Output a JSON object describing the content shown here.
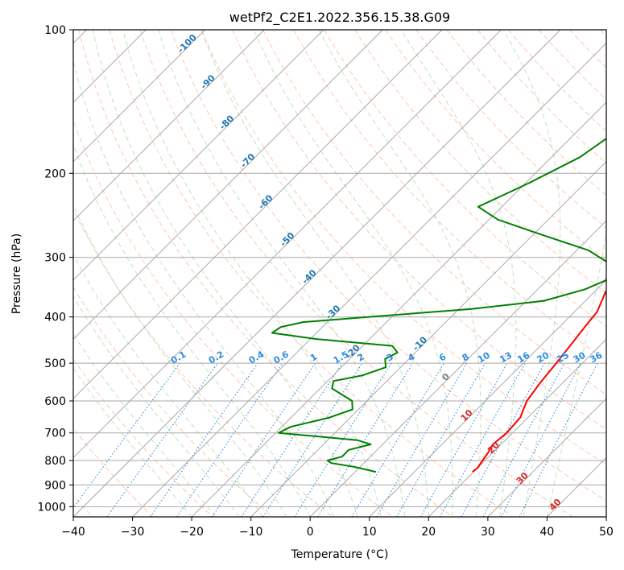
{
  "chart_data": {
    "type": "line",
    "title": "wetPf2_C2E1.2022.356.15.38.G09",
    "xlabel": "Temperature (°C)",
    "ylabel": "Pressure (hPa)",
    "xlim": [
      -40,
      50
    ],
    "ylim": [
      1050,
      100
    ],
    "y_scale": "log",
    "x_ticks": [
      -40,
      -30,
      -20,
      -10,
      0,
      10,
      20,
      30,
      40,
      50
    ],
    "y_ticks": [
      100,
      200,
      300,
      400,
      500,
      600,
      700,
      800,
      900,
      1000
    ],
    "grid": true,
    "skew": "temperature isotherms skewed 45°",
    "series": [
      {
        "color": "#ff0000",
        "variable": "temperature",
        "points": [
          {
            "p": 100,
            "t": 7.0
          },
          {
            "p": 115,
            "t": 3.2
          },
          {
            "p": 130,
            "t": 1.5
          },
          {
            "p": 145,
            "t": 2.0
          },
          {
            "p": 160,
            "t": 3.5
          },
          {
            "p": 175,
            "t": 4.6
          },
          {
            "p": 190,
            "t": 6.0
          },
          {
            "p": 210,
            "t": 8.0
          },
          {
            "p": 230,
            "t": 9.6
          },
          {
            "p": 250,
            "t": 9.6
          },
          {
            "p": 270,
            "t": 8.5
          },
          {
            "p": 290,
            "t": 8.0
          },
          {
            "p": 310,
            "t": 9.0
          },
          {
            "p": 330,
            "t": 10.6
          },
          {
            "p": 360,
            "t": 12.2
          },
          {
            "p": 390,
            "t": 13.8
          },
          {
            "p": 420,
            "t": 14.3
          },
          {
            "p": 460,
            "t": 15.0
          },
          {
            "p": 500,
            "t": 15.6
          },
          {
            "p": 550,
            "t": 16.2
          },
          {
            "p": 600,
            "t": 17.0
          },
          {
            "p": 650,
            "t": 18.7
          },
          {
            "p": 700,
            "t": 19.0
          },
          {
            "p": 740,
            "t": 18.6
          },
          {
            "p": 770,
            "t": 19.2
          },
          {
            "p": 800,
            "t": 19.6
          },
          {
            "p": 830,
            "t": 20.0
          },
          {
            "p": 845,
            "t": 19.8
          }
        ]
      },
      {
        "color": "#008000",
        "variable": "dewpoint",
        "points": [
          {
            "p": 100,
            "t": -5.0
          },
          {
            "p": 115,
            "t": -9.0
          },
          {
            "p": 130,
            "t": -11.5
          },
          {
            "p": 145,
            "t": -12.7
          },
          {
            "p": 165,
            "t": -13.5
          },
          {
            "p": 185,
            "t": -15.2
          },
          {
            "p": 210,
            "t": -19.5
          },
          {
            "p": 235,
            "t": -24.0
          },
          {
            "p": 250,
            "t": -18.5
          },
          {
            "p": 270,
            "t": -8.0
          },
          {
            "p": 290,
            "t": 2.0
          },
          {
            "p": 310,
            "t": 8.0
          },
          {
            "p": 335,
            "t": 10.0
          },
          {
            "p": 350,
            "t": 8.0
          },
          {
            "p": 370,
            "t": 3.0
          },
          {
            "p": 385,
            "t": -8.0
          },
          {
            "p": 400,
            "t": -24.0
          },
          {
            "p": 410,
            "t": -34.0
          },
          {
            "p": 420,
            "t": -37.0
          },
          {
            "p": 432,
            "t": -37.5
          },
          {
            "p": 445,
            "t": -29.0
          },
          {
            "p": 460,
            "t": -15.0
          },
          {
            "p": 475,
            "t": -13.0
          },
          {
            "p": 490,
            "t": -14.0
          },
          {
            "p": 510,
            "t": -12.5
          },
          {
            "p": 530,
            "t": -15.0
          },
          {
            "p": 545,
            "t": -19.0
          },
          {
            "p": 565,
            "t": -18.0
          },
          {
            "p": 600,
            "t": -12.5
          },
          {
            "p": 625,
            "t": -11.0
          },
          {
            "p": 650,
            "t": -13.5
          },
          {
            "p": 680,
            "t": -18.5
          },
          {
            "p": 700,
            "t": -19.5
          },
          {
            "p": 725,
            "t": -5.0
          },
          {
            "p": 740,
            "t": -2.0
          },
          {
            "p": 760,
            "t": -4.8
          },
          {
            "p": 785,
            "t": -4.8
          },
          {
            "p": 800,
            "t": -6.6
          },
          {
            "p": 810,
            "t": -5.5
          },
          {
            "p": 825,
            "t": -1.0
          },
          {
            "p": 845,
            "t": 3.5
          }
        ]
      }
    ],
    "background_lines": [
      {
        "kind": "isotherms",
        "color": "#aaaaaa",
        "style": "solid",
        "every_c": 10
      },
      {
        "kind": "dry adiabats",
        "color": "#ffa07a",
        "style": "dashed"
      },
      {
        "kind": "moist adiabats",
        "color": "#90c890",
        "style": "dashed"
      },
      {
        "kind": "mixing ratio",
        "color": "#3399ff",
        "style": "dotted"
      }
    ],
    "annotations": {
      "isotherm_labels": [
        "-100",
        "-90",
        "-80",
        "-70",
        "-60",
        "-50",
        "-40",
        "-30",
        "-20",
        "-10",
        "0",
        "10",
        "20",
        "30",
        "40"
      ],
      "mixing_ratio_labels": [
        "0.1",
        "0.2",
        "0.4",
        "0.6",
        "1",
        "1.5",
        "2",
        "3",
        "4",
        "6",
        "8",
        "10",
        "13",
        "16",
        "20",
        "25",
        "30",
        "36"
      ],
      "mixing_ratio_values": [
        0.1,
        0.2,
        0.4,
        0.6,
        1,
        1.5,
        2,
        3,
        4,
        6,
        8,
        10,
        13,
        16,
        20,
        25,
        30,
        36
      ]
    }
  }
}
